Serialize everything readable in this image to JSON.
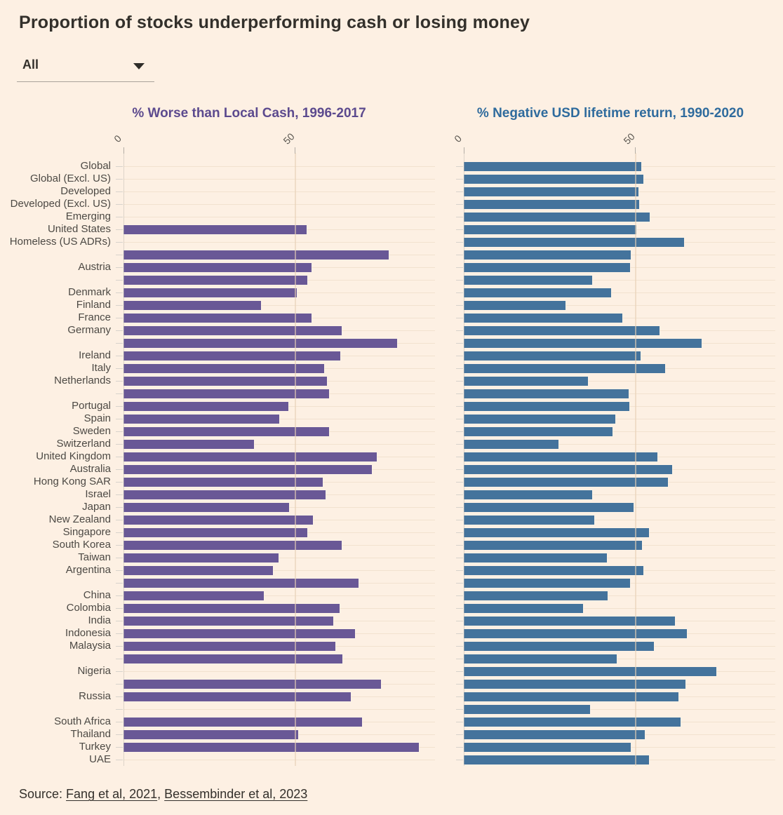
{
  "page_title": "Proportion of stocks underperforming cash or losing money",
  "filter": {
    "value": "All"
  },
  "source": {
    "prefix": "Source:",
    "links": [
      "Fang et al, 2021",
      "Bessembinder et al, 2023"
    ],
    "separator": ","
  },
  "chart_data": {
    "type": "bar",
    "orientation": "horizontal",
    "grid": true,
    "x_ticks": [
      0,
      50
    ],
    "xlim": [
      0,
      91
    ],
    "xlabel": "",
    "ylabel": "",
    "categories": [
      "Global",
      "Global (Excl. US)",
      "Developed",
      "Developed (Excl. US)",
      "Emerging",
      "United States",
      "Homeless (US ADRs)",
      "",
      "Austria",
      "",
      "Denmark",
      "Finland",
      "France",
      "Germany",
      "",
      "Ireland",
      "Italy",
      "Netherlands",
      "",
      "Portugal",
      "Spain",
      "Sweden",
      "Switzerland",
      "United Kingdom",
      "Australia",
      "Hong Kong SAR",
      "Israel",
      "Japan",
      "New Zealand",
      "Singapore",
      "South Korea",
      "Taiwan",
      "Argentina",
      "",
      "China",
      "Colombia",
      "India",
      "Indonesia",
      "Malaysia",
      "",
      "Nigeria",
      "",
      "Russia",
      "",
      "South Africa",
      "Thailand",
      "Turkey",
      "UAE"
    ],
    "series": [
      {
        "name": "% Worse than Local Cash, 1996-2017",
        "color": "#695896",
        "title_color": "#5c4a8e",
        "values": [
          null,
          null,
          null,
          null,
          null,
          53.5,
          null,
          77.4,
          55.0,
          53.7,
          50.6,
          40.2,
          55.0,
          63.8,
          79.9,
          63.4,
          58.6,
          59.5,
          60.0,
          48.2,
          45.5,
          60.0,
          38.1,
          73.9,
          72.6,
          58.3,
          59.0,
          48.4,
          55.4,
          53.7,
          63.8,
          45.2,
          43.7,
          68.6,
          40.9,
          63.2,
          61.2,
          67.7,
          61.8,
          64.0,
          null,
          75.2,
          66.4,
          null,
          69.6,
          51.1,
          86.2,
          null
        ]
      },
      {
        "name": "% Negative USD lifetime return, 1990-2020",
        "color": "#44739c",
        "title_color": "#2f6b9d",
        "values": [
          51.8,
          52.4,
          51.1,
          51.3,
          54.3,
          50.4,
          64.4,
          48.8,
          48.5,
          37.5,
          43.0,
          29.8,
          46.4,
          57.1,
          69.4,
          51.7,
          58.9,
          36.2,
          48.2,
          48.4,
          44.3,
          43.5,
          27.6,
          56.5,
          60.9,
          59.7,
          37.6,
          49.5,
          38.1,
          54.2,
          52.0,
          41.9,
          52.5,
          48.6,
          42.0,
          34.9,
          61.6,
          65.1,
          55.5,
          44.7,
          73.8,
          64.7,
          62.7,
          36.8,
          63.3,
          52.9,
          48.8,
          54.1
        ]
      }
    ]
  }
}
